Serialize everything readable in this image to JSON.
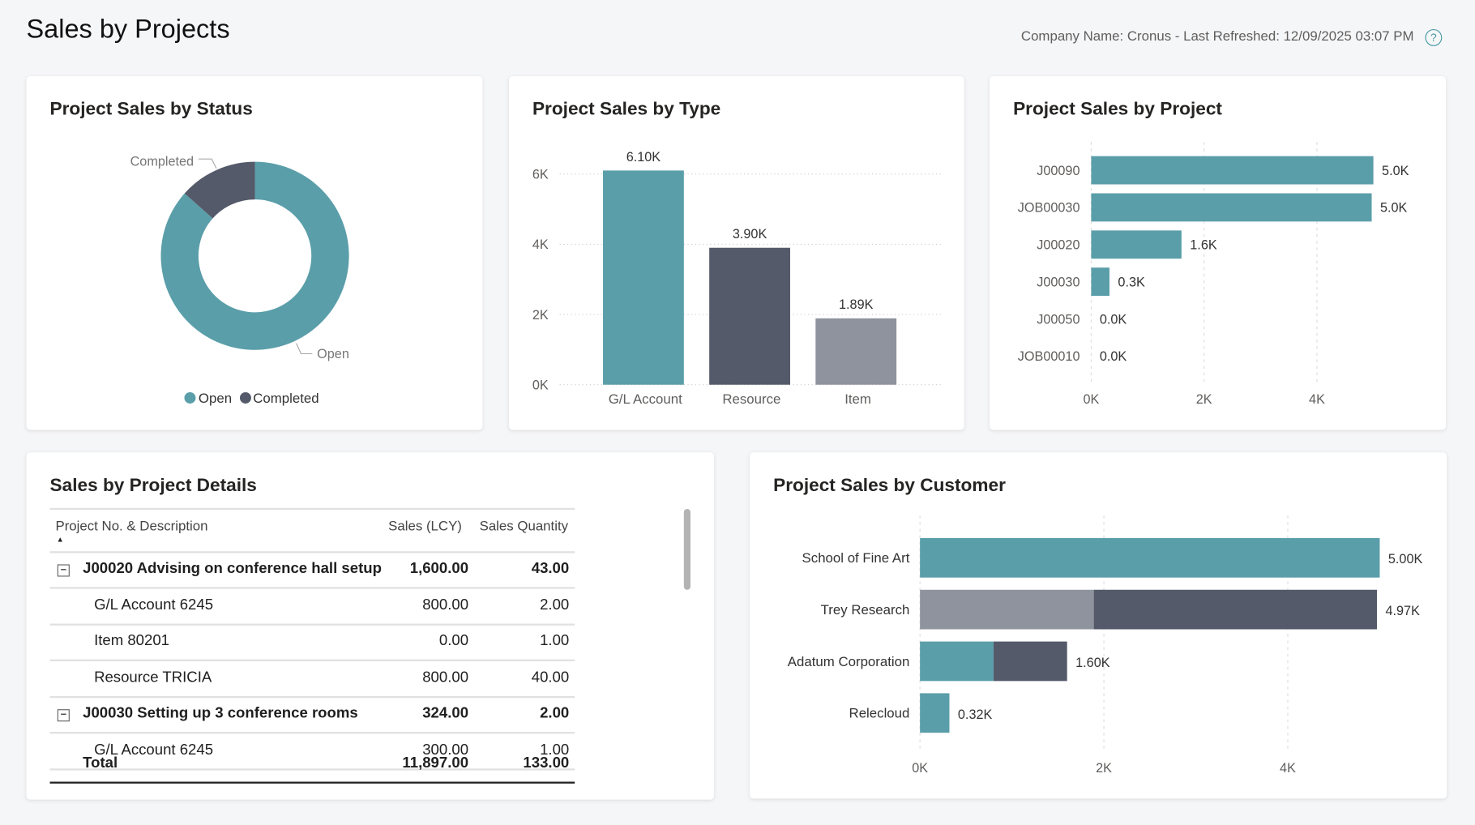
{
  "header": {
    "title": "Sales by Projects",
    "meta": "Company Name: Cronus - Last Refreshed: 12/09/2025 03:07 PM",
    "help_icon": "question-circle-icon"
  },
  "colors": {
    "teal": "#5a9ea9",
    "dark": "#545a6a",
    "grey": "#8f939d"
  },
  "status_card": {
    "title": "Project Sales by Status",
    "chart_data": {
      "type": "pie",
      "donut": true,
      "slices": [
        {
          "label": "Open",
          "value": 10297,
          "color": "#5a9ea9"
        },
        {
          "label": "Completed",
          "value": 1600,
          "color": "#545a6a"
        }
      ],
      "legend": [
        "Open",
        "Completed"
      ],
      "legend_position": "bottom"
    }
  },
  "type_card": {
    "title": "Project Sales by Type",
    "chart_data": {
      "type": "bar",
      "categories": [
        "G/L Account",
        "Resource",
        "Item"
      ],
      "values": [
        6100,
        3900,
        1890
      ],
      "data_labels": [
        "6.10K",
        "3.90K",
        "1.89K"
      ],
      "colors": [
        "#5a9ea9",
        "#545a6a",
        "#8f939d"
      ],
      "yticks": [
        "0K",
        "2K",
        "4K",
        "6K"
      ],
      "ylim": [
        0,
        6000
      ],
      "grid": true
    }
  },
  "project_card": {
    "title": "Project Sales by Project",
    "chart_data": {
      "type": "bar",
      "orientation": "horizontal",
      "categories": [
        "J00090",
        "JOB00030",
        "J00020",
        "J00030",
        "J00050",
        "JOB00010"
      ],
      "values": [
        5000,
        4970,
        1600,
        324,
        0,
        0
      ],
      "data_labels": [
        "5.0K",
        "5.0K",
        "1.6K",
        "0.3K",
        "0.0K",
        "0.0K"
      ],
      "xticks": [
        "0K",
        "2K",
        "4K"
      ],
      "xlim": [
        0,
        5500
      ],
      "grid": true
    }
  },
  "details_card": {
    "title": "Sales by Project Details",
    "columns": [
      "Project No. & Description",
      "Sales (LCY)",
      "Sales Quantity"
    ],
    "rows": [
      {
        "desc": "J00020 Advising on conference hall setup",
        "sales": "1,600.00",
        "qty": "43.00",
        "group": true
      },
      {
        "desc": "G/L Account 6245",
        "sales": "800.00",
        "qty": "2.00",
        "group": false
      },
      {
        "desc": "Item 80201",
        "sales": "0.00",
        "qty": "1.00",
        "group": false
      },
      {
        "desc": "Resource TRICIA",
        "sales": "800.00",
        "qty": "40.00",
        "group": false
      },
      {
        "desc": "J00030 Setting up 3 conference rooms",
        "sales": "324.00",
        "qty": "2.00",
        "group": true
      },
      {
        "desc": "G/L Account 6245",
        "sales": "300.00",
        "qty": "1.00",
        "group": false
      }
    ],
    "total": {
      "label": "Total",
      "sales": "11,897.00",
      "qty": "133.00"
    }
  },
  "customer_card": {
    "title": "Project Sales by Customer",
    "chart_data": {
      "type": "bar",
      "orientation": "horizontal",
      "stacked": true,
      "categories": [
        "School of Fine Art",
        "Trey Research",
        "Adatum Corporation",
        "Relecloud"
      ],
      "series": [
        {
          "color": "#5a9ea9",
          "values": [
            5000,
            0,
            800,
            320
          ]
        },
        {
          "color": "#8f939d",
          "values": [
            0,
            1890,
            0,
            0
          ]
        },
        {
          "color": "#545a6a",
          "values": [
            0,
            3080,
            800,
            0
          ]
        }
      ],
      "data_labels": [
        "5.00K",
        "4.97K",
        "1.60K",
        "0.32K"
      ],
      "xticks": [
        "0K",
        "2K",
        "4K"
      ],
      "xlim": [
        0,
        5000
      ],
      "grid": true
    }
  }
}
